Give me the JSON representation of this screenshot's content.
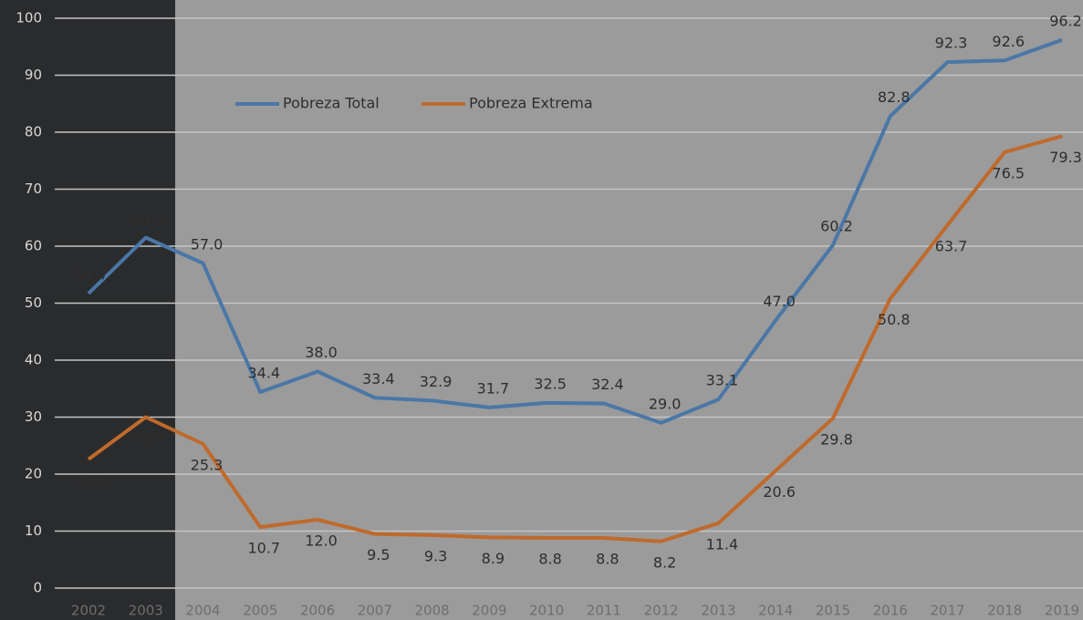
{
  "chart_data": {
    "type": "line",
    "categories": [
      "2002",
      "2003",
      "2004",
      "2005",
      "2006",
      "2007",
      "2008",
      "2009",
      "2010",
      "2011",
      "2012",
      "2013",
      "2014",
      "2015",
      "2016",
      "2017",
      "2018",
      "2019"
    ],
    "series": [
      {
        "name": "Pobreza Total",
        "color": "#4a77a6",
        "values": [
          51.7,
          61.5,
          57.0,
          34.4,
          38.0,
          33.4,
          32.9,
          31.7,
          32.5,
          32.4,
          29.0,
          33.1,
          47.0,
          60.2,
          82.8,
          92.3,
          92.6,
          96.2
        ],
        "value_labels": [
          "51.7",
          "61.5",
          "57.0",
          "34.4",
          "38.0",
          "33.4",
          "32.9",
          "31.7",
          "32.5",
          "32.4",
          "29.0",
          "33.1",
          "47.0",
          "60.2",
          "82.8",
          "92.3",
          "92.6",
          "96.2"
        ]
      },
      {
        "name": "Pobreza Extrema",
        "color": "#bf6a2c",
        "values": [
          22.6,
          30.0,
          25.3,
          10.7,
          12.0,
          9.5,
          9.3,
          8.9,
          8.8,
          8.8,
          8.2,
          11.4,
          20.6,
          29.8,
          50.8,
          63.7,
          76.5,
          79.3
        ],
        "value_labels": [
          "22.6",
          "30.0",
          "25.3",
          "10.7",
          "12.0",
          "9.5",
          "9.3",
          "8.9",
          "8.8",
          "8.8",
          "8.2",
          "11.4",
          "20.6",
          "29.8",
          "50.8",
          "63.7",
          "76.5",
          "79.3"
        ]
      }
    ],
    "ylim": [
      0,
      100
    ],
    "yticks": [
      0,
      10,
      20,
      30,
      40,
      50,
      60,
      70,
      80,
      90,
      100
    ],
    "grid": true,
    "legend": "top"
  }
}
